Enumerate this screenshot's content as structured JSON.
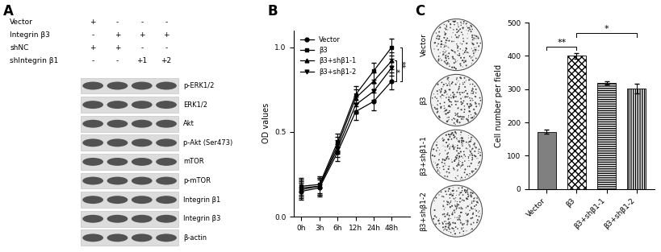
{
  "blot": {
    "panel": "A",
    "conditions": [
      {
        "label": "Vector",
        "lanes": [
          "+",
          "-",
          "-",
          "-"
        ]
      },
      {
        "label": "Integrin β3",
        "lanes": [
          "-",
          "+",
          "+",
          "+"
        ]
      },
      {
        "label": "shNC",
        "lanes": [
          "+",
          "+",
          "-",
          "-"
        ]
      },
      {
        "label": "shIntegrin β1",
        "lanes": [
          "-",
          "-",
          "+1",
          "+2"
        ]
      }
    ],
    "bands": [
      "p-ERK1/2",
      "ERK1/2",
      "Akt",
      "p-Akt (Ser473)",
      "mTOR",
      "p-mTOR",
      "Integrin β1",
      "Integrin β3",
      "β-actin"
    ]
  },
  "chart_data": [
    {
      "panel": "B",
      "type": "line",
      "ylabel": "OD values",
      "categories": [
        "0h",
        "3h",
        "6h",
        "12h",
        "24h",
        "48h"
      ],
      "ylim": [
        0,
        1.1
      ],
      "yticks": [
        {
          "value": 0,
          "label": "0.0"
        },
        {
          "value": 0.5,
          "label": "0.5"
        },
        {
          "value": 1,
          "label": "1.0"
        }
      ],
      "legend": "upper left",
      "series": [
        {
          "name": "Vector",
          "color": "#000000",
          "marker": "circle",
          "values": [
            0.15,
            0.17,
            0.38,
            0.62,
            0.68,
            0.8
          ],
          "errors": [
            0.05,
            0.05,
            0.05,
            0.05,
            0.05,
            0.05
          ]
        },
        {
          "name": "β3",
          "color": "#000000",
          "marker": "square",
          "values": [
            0.18,
            0.19,
            0.44,
            0.72,
            0.86,
            1.0
          ],
          "errors": [
            0.05,
            0.05,
            0.05,
            0.05,
            0.05,
            0.05
          ]
        },
        {
          "name": "β3+shβ1-1",
          "color": "#000000",
          "marker": "triangle_up",
          "values": [
            0.17,
            0.18,
            0.42,
            0.7,
            0.8,
            0.92
          ],
          "errors": [
            0.05,
            0.05,
            0.05,
            0.05,
            0.05,
            0.05
          ]
        },
        {
          "name": "β3+shβ1-2",
          "color": "#000000",
          "marker": "triangle_down",
          "values": [
            0.16,
            0.18,
            0.4,
            0.66,
            0.74,
            0.88
          ],
          "errors": [
            0.05,
            0.05,
            0.05,
            0.05,
            0.05,
            0.05
          ]
        }
      ],
      "annotations": [
        {
          "text": "*",
          "between": [
            "Vector",
            "β3+shβ1-1"
          ]
        },
        {
          "text": "**",
          "between": [
            "Vector",
            "β3"
          ]
        }
      ]
    },
    {
      "panel": "C",
      "type": "bar",
      "ylabel": "Cell number per field",
      "categories": [
        "Vector",
        "β3",
        "β3+shβ1-1",
        "β3+shβ1-2"
      ],
      "values": [
        172,
        400,
        318,
        302
      ],
      "errors": [
        6,
        8,
        5,
        15
      ],
      "colors": [
        "#808080",
        "#ffffff",
        "#ffffff",
        "#ffffff"
      ],
      "ylim": [
        0,
        500
      ],
      "yticks": [
        0,
        100,
        200,
        300,
        400,
        500
      ],
      "annotations": [
        {
          "text": "**",
          "between": [
            "Vector",
            "β3"
          ]
        },
        {
          "text": "*",
          "between": [
            "β3",
            "β3+shβ1-2"
          ]
        }
      ]
    }
  ],
  "colony_images": {
    "labels": [
      "Vector",
      "β3",
      "β3+shβ1-1",
      "β3+shβ1-2"
    ]
  }
}
